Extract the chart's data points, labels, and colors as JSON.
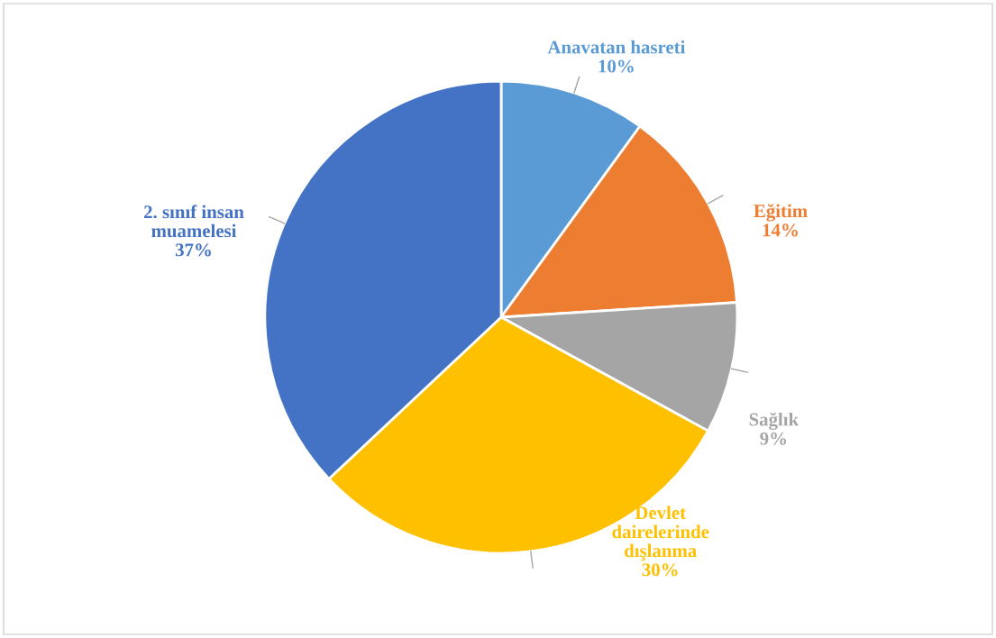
{
  "chart_data": {
    "type": "pie",
    "categories": [
      "Anavatan hasreti",
      "Eğitim",
      "Sağlık",
      "Devlet\ndairelerinde\ndışlanma",
      "2. sınıf insan\nmuamelesi"
    ],
    "values": [
      10,
      14,
      9,
      30,
      37
    ],
    "value_labels": [
      "10%",
      "14%",
      "9%",
      "30%",
      "37%"
    ],
    "colors": [
      "#5b9bd5",
      "#ed7d31",
      "#a5a5a5",
      "#ffc000",
      "#4472c4"
    ],
    "legend": false
  }
}
